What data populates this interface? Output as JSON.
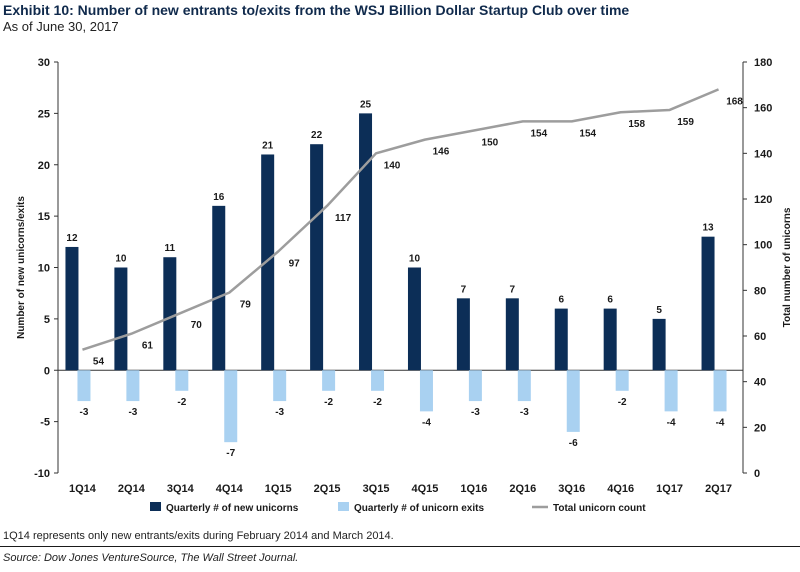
{
  "header": {
    "title": "Exhibit 10: Number of new entrants to/exits from the WSJ Billion Dollar Startup Club over time",
    "subtitle": "As of June 30, 2017"
  },
  "footer": {
    "note": "1Q14 represents only new entrants/exits during February 2014 and March 2014.",
    "source": "Source: Dow Jones VentureSource, The Wall Street Journal."
  },
  "colors": {
    "entrants": "#0c2e57",
    "exits": "#a9d1f1",
    "total": "#9d9d9d"
  },
  "chart_data": {
    "type": "bar",
    "categories": [
      "1Q14",
      "2Q14",
      "3Q14",
      "4Q14",
      "1Q15",
      "2Q15",
      "3Q15",
      "4Q15",
      "1Q16",
      "2Q16",
      "3Q16",
      "4Q16",
      "1Q17",
      "2Q17"
    ],
    "series": [
      {
        "name": "Quarterly # of new unicorns",
        "type": "bar",
        "axis": "left",
        "values": [
          12,
          10,
          11,
          16,
          21,
          22,
          25,
          10,
          7,
          7,
          6,
          6,
          5,
          13
        ]
      },
      {
        "name": "Quarterly # of unicorn exits",
        "type": "bar",
        "axis": "left",
        "values": [
          -3,
          -3,
          -2,
          -7,
          -3,
          -2,
          -2,
          -4,
          -3,
          -3,
          -6,
          -2,
          -4,
          -4
        ]
      },
      {
        "name": "Total unicorn count",
        "type": "line",
        "axis": "right",
        "values": [
          54,
          61,
          70,
          79,
          97,
          117,
          140,
          146,
          150,
          154,
          154,
          158,
          159,
          168
        ]
      }
    ],
    "ylabel": "Number of new unicorns/exits",
    "y2label": "Total number of unicorns",
    "ylim": [
      -10,
      30
    ],
    "yticks": [
      -10,
      -5,
      0,
      5,
      10,
      15,
      20,
      25,
      30
    ],
    "y2lim": [
      0,
      180
    ],
    "y2ticks": [
      0,
      20,
      40,
      60,
      80,
      100,
      120,
      140,
      160,
      180
    ],
    "legend_position": "bottom",
    "grid": false
  }
}
